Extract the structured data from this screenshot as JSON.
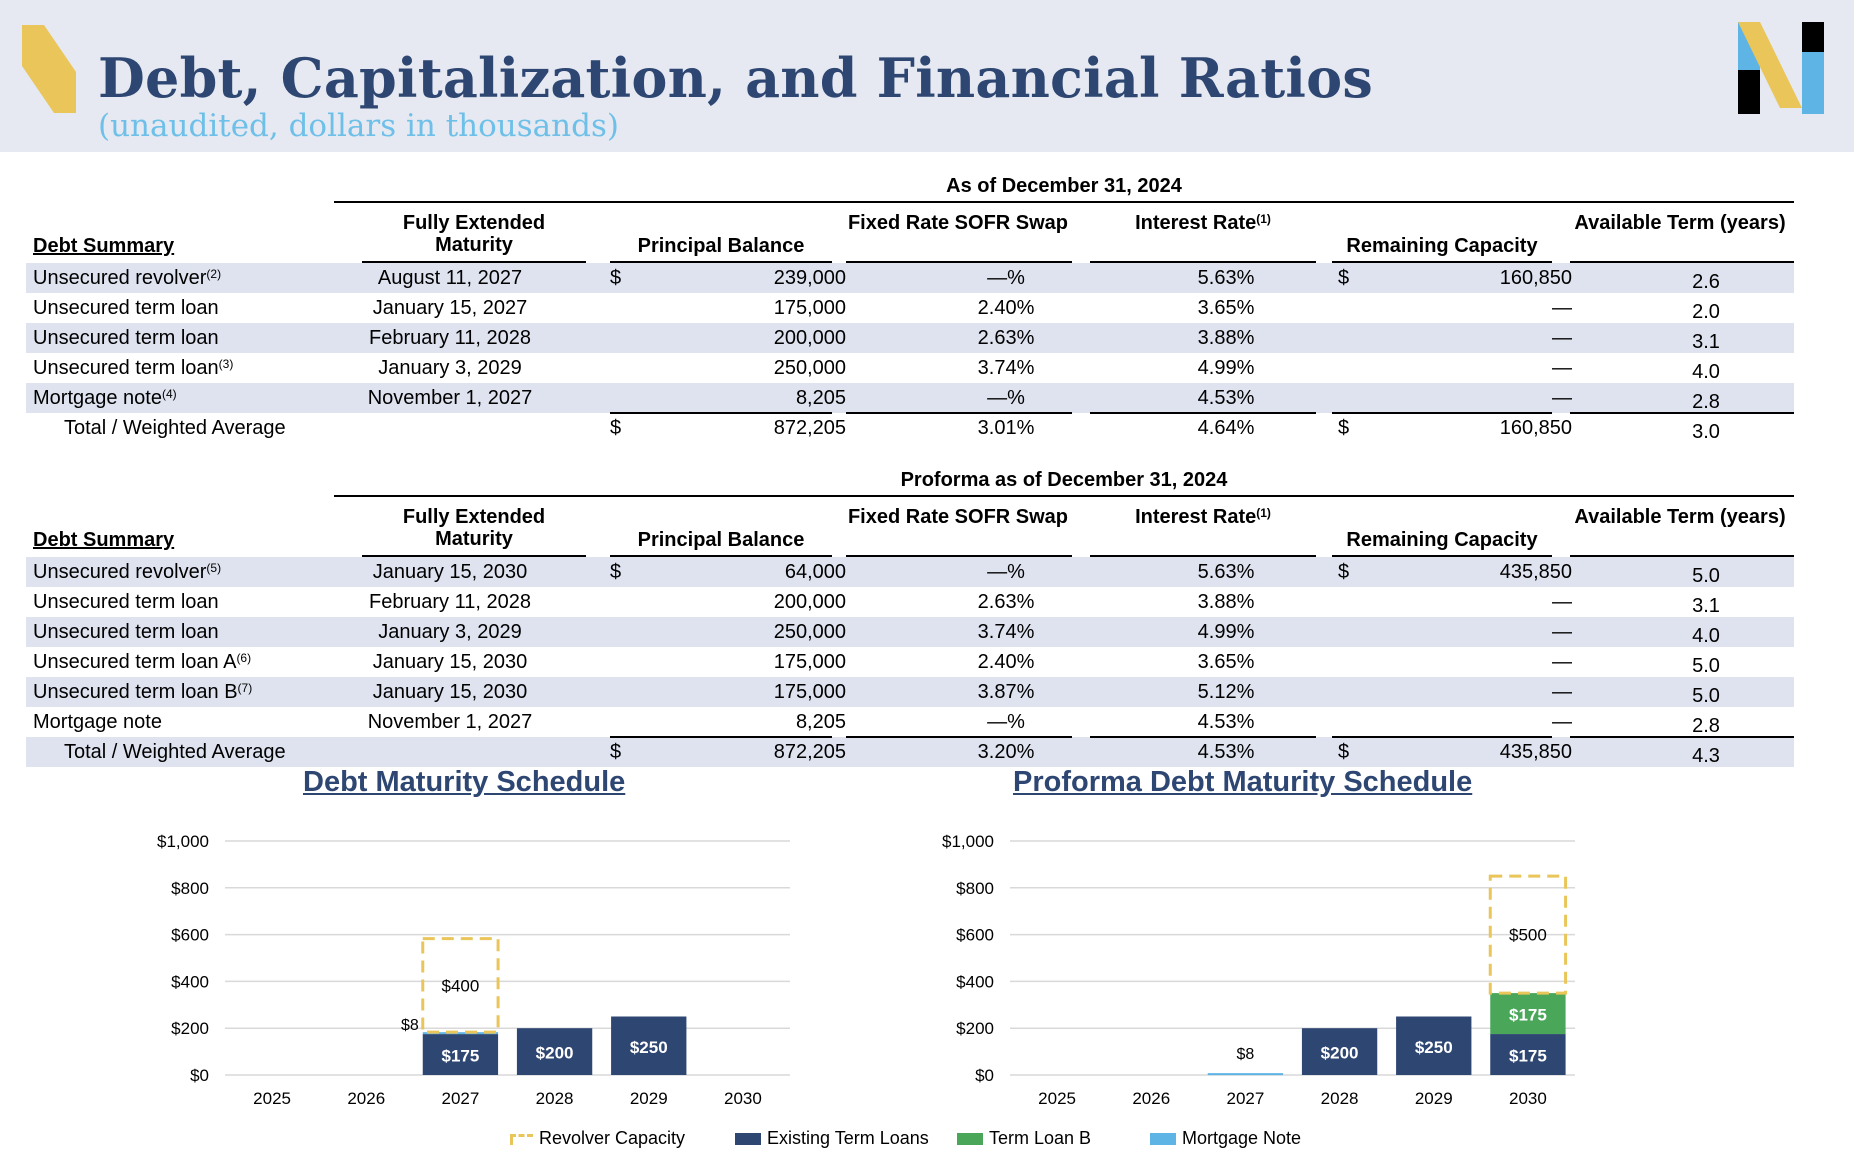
{
  "header": {
    "title": "Debt, Capitalization, and Financial Ratios",
    "subtitle": "(unaudited, dollars in thousands)",
    "accent_color": "#2e4672",
    "subtitle_color": "#6ec0e8",
    "chevron_color": "#e9c55a"
  },
  "columns": {
    "debt_summary": "Debt Summary",
    "maturity": "Fully Extended Maturity",
    "principal": "Principal Balance",
    "fixed_rate": "Fixed Rate SOFR Swap",
    "interest": "Interest Rate",
    "interest_note": "(1)",
    "capacity": "Remaining Capacity",
    "term": "Available Term (years)"
  },
  "current": {
    "heading": "As of December 31, 2024",
    "rows": [
      {
        "label": "Unsecured revolver",
        "note": "(2)",
        "maturity": "August 11, 2027",
        "dollar": "$",
        "balance": "239,000",
        "fixed": "—%",
        "interest": "5.63%",
        "cap_dollar": "$",
        "capacity": "160,850",
        "term": "2.6"
      },
      {
        "label": "Unsecured term loan",
        "note": "",
        "maturity": "January 15, 2027",
        "dollar": "",
        "balance": "175,000",
        "fixed": "2.40%",
        "interest": "3.65%",
        "cap_dollar": "",
        "capacity": "—",
        "term": "2.0"
      },
      {
        "label": "Unsecured term loan",
        "note": "",
        "maturity": "February 11, 2028",
        "dollar": "",
        "balance": "200,000",
        "fixed": "2.63%",
        "interest": "3.88%",
        "cap_dollar": "",
        "capacity": "—",
        "term": "3.1"
      },
      {
        "label": "Unsecured term loan",
        "note": "(3)",
        "maturity": "January 3, 2029",
        "dollar": "",
        "balance": "250,000",
        "fixed": "3.74%",
        "interest": "4.99%",
        "cap_dollar": "",
        "capacity": "—",
        "term": "4.0"
      },
      {
        "label": "Mortgage note",
        "note": "(4)",
        "maturity": "November 1, 2027",
        "dollar": "",
        "balance": "8,205",
        "fixed": "—%",
        "interest": "4.53%",
        "cap_dollar": "",
        "capacity": "—",
        "term": "2.8"
      }
    ],
    "total": {
      "label": "Total / Weighted Average",
      "dollar": "$",
      "balance": "872,205",
      "fixed": "3.01%",
      "interest": "4.64%",
      "cap_dollar": "$",
      "capacity": "160,850",
      "term": "3.0"
    }
  },
  "proforma": {
    "heading": "Proforma as of December 31, 2024",
    "rows": [
      {
        "label": "Unsecured revolver",
        "note": "(5)",
        "maturity": "January 15, 2030",
        "dollar": "$",
        "balance": "64,000",
        "fixed": "—%",
        "interest": "5.63%",
        "cap_dollar": "$",
        "capacity": "435,850",
        "term": "5.0"
      },
      {
        "label": "Unsecured term loan",
        "note": "",
        "maturity": "February 11, 2028",
        "dollar": "",
        "balance": "200,000",
        "fixed": "2.63%",
        "interest": "3.88%",
        "cap_dollar": "",
        "capacity": "—",
        "term": "3.1"
      },
      {
        "label": "Unsecured term loan",
        "note": "",
        "maturity": "January 3, 2029",
        "dollar": "",
        "balance": "250,000",
        "fixed": "3.74%",
        "interest": "4.99%",
        "cap_dollar": "",
        "capacity": "—",
        "term": "4.0"
      },
      {
        "label": "Unsecured term loan A",
        "note": "(6)",
        "maturity": "January 15, 2030",
        "dollar": "",
        "balance": "175,000",
        "fixed": "2.40%",
        "interest": "3.65%",
        "cap_dollar": "",
        "capacity": "—",
        "term": "5.0"
      },
      {
        "label": "Unsecured term loan B",
        "note": "(7)",
        "maturity": "January 15, 2030",
        "dollar": "",
        "balance": "175,000",
        "fixed": "3.87%",
        "interest": "5.12%",
        "cap_dollar": "",
        "capacity": "—",
        "term": "5.0"
      },
      {
        "label": "Mortgage note",
        "note": "",
        "maturity": "November 1, 2027",
        "dollar": "",
        "balance": "8,205",
        "fixed": "—%",
        "interest": "4.53%",
        "cap_dollar": "",
        "capacity": "—",
        "term": "2.8"
      }
    ],
    "total": {
      "label": "Total / Weighted Average",
      "dollar": "$",
      "balance": "872,205",
      "fixed": "3.20%",
      "interest": "4.53%",
      "cap_dollar": "$",
      "capacity": "435,850",
      "term": "4.3"
    }
  },
  "chart_data": [
    {
      "type": "bar",
      "stacked": true,
      "title": "Debt Maturity Schedule",
      "categories": [
        "2025",
        "2026",
        "2027",
        "2028",
        "2029",
        "2030"
      ],
      "ylim": [
        0,
        1000
      ],
      "yticks": [
        "$0",
        "$200",
        "$400",
        "$600",
        "$800",
        "$1,000"
      ],
      "grid": true,
      "series": [
        {
          "name": "Existing Term Loans",
          "color": "#2e4672",
          "values": [
            0,
            0,
            175,
            200,
            250,
            0
          ],
          "labels": [
            "",
            "",
            "$175",
            "$200",
            "$250",
            ""
          ]
        },
        {
          "name": "Term Loan B",
          "color": "#4aa75a",
          "values": [
            0,
            0,
            0,
            0,
            0,
            0
          ],
          "labels": [
            "",
            "",
            "",
            "",
            "",
            ""
          ]
        },
        {
          "name": "Mortgage Note",
          "color": "#5fb4e6",
          "values": [
            0,
            0,
            8,
            0,
            0,
            0
          ],
          "labels": [
            "",
            "",
            "$8",
            "",
            "",
            ""
          ]
        },
        {
          "name": "Revolver Capacity",
          "color": "#e9c55a",
          "style": "dashed",
          "values": [
            0,
            0,
            400,
            0,
            0,
            0
          ],
          "labels": [
            "",
            "",
            "$400",
            "",
            "",
            ""
          ]
        }
      ]
    },
    {
      "type": "bar",
      "stacked": true,
      "title": "Proforma Debt Maturity Schedule",
      "categories": [
        "2025",
        "2026",
        "2027",
        "2028",
        "2029",
        "2030"
      ],
      "ylim": [
        0,
        1000
      ],
      "yticks": [
        "$0",
        "$200",
        "$400",
        "$600",
        "$800",
        "$1,000"
      ],
      "grid": true,
      "series": [
        {
          "name": "Existing Term Loans",
          "color": "#2e4672",
          "values": [
            0,
            0,
            0,
            200,
            250,
            175
          ],
          "labels": [
            "",
            "",
            "",
            "$200",
            "$250",
            "$175"
          ]
        },
        {
          "name": "Term Loan B",
          "color": "#4aa75a",
          "values": [
            0,
            0,
            0,
            0,
            0,
            175
          ],
          "labels": [
            "",
            "",
            "",
            "",
            "",
            "$175"
          ]
        },
        {
          "name": "Mortgage Note",
          "color": "#5fb4e6",
          "values": [
            0,
            0,
            8,
            0,
            0,
            0
          ],
          "labels": [
            "",
            "",
            "$8",
            "",
            "",
            ""
          ]
        },
        {
          "name": "Revolver Capacity",
          "color": "#e9c55a",
          "style": "dashed",
          "values": [
            0,
            0,
            0,
            0,
            0,
            500
          ],
          "labels": [
            "",
            "",
            "",
            "",
            "",
            "$500"
          ]
        }
      ]
    }
  ],
  "legend": [
    {
      "name": "Revolver Capacity",
      "color": "#e9c55a",
      "style": "dashed"
    },
    {
      "name": "Existing Term Loans",
      "color": "#2e4672"
    },
    {
      "name": "Term Loan B",
      "color": "#4aa75a"
    },
    {
      "name": "Mortgage Note",
      "color": "#5fb4e6"
    }
  ]
}
